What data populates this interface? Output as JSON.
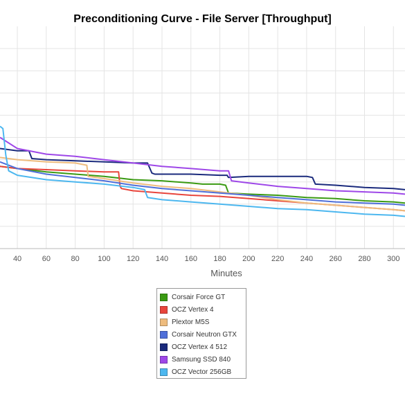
{
  "chart_data": {
    "type": "line",
    "title": "Preconditioning Curve - File Server [Throughput]",
    "xlabel": "Minutes",
    "ylabel": "",
    "xlim": [
      28,
      308
    ],
    "ylim": [
      0,
      100
    ],
    "x_ticks": [
      40,
      60,
      80,
      100,
      120,
      140,
      160,
      180,
      200,
      220,
      240,
      260,
      280,
      300
    ],
    "x_tick_labels": [
      "40",
      "60",
      "80",
      "100",
      "120",
      "140",
      "160",
      "180",
      "200",
      "220",
      "240",
      "260",
      "280",
      "300"
    ],
    "y_grid": [
      10,
      20,
      30,
      40,
      50,
      60,
      70,
      80,
      90
    ],
    "grid": true,
    "legend_position": "bottom-center",
    "series": [
      {
        "name": "Corsair Force GT",
        "color": "#3a9a12",
        "points": [
          [
            28,
            37
          ],
          [
            40,
            36
          ],
          [
            60,
            34.5
          ],
          [
            80,
            33.5
          ],
          [
            100,
            32.5
          ],
          [
            120,
            31
          ],
          [
            140,
            30.5
          ],
          [
            160,
            29.5
          ],
          [
            168,
            29
          ],
          [
            180,
            29
          ],
          [
            184,
            28.5
          ],
          [
            186,
            25
          ],
          [
            200,
            24.5
          ],
          [
            220,
            24
          ],
          [
            240,
            23
          ],
          [
            260,
            22.5
          ],
          [
            280,
            21.5
          ],
          [
            300,
            21
          ],
          [
            308,
            20.5
          ]
        ]
      },
      {
        "name": "OCZ Vertex 4",
        "color": "#e8453c",
        "points": [
          [
            28,
            37
          ],
          [
            40,
            36
          ],
          [
            60,
            35.5
          ],
          [
            80,
            35
          ],
          [
            100,
            34.5
          ],
          [
            110,
            34.5
          ],
          [
            111,
            28
          ],
          [
            112,
            27
          ],
          [
            120,
            26
          ],
          [
            140,
            25
          ],
          [
            160,
            24
          ],
          [
            180,
            23.5
          ],
          [
            200,
            22.5
          ],
          [
            220,
            21.5
          ],
          [
            240,
            20.5
          ],
          [
            260,
            19.5
          ],
          [
            280,
            18.5
          ],
          [
            300,
            17.5
          ],
          [
            308,
            17
          ]
        ]
      },
      {
        "name": "Plextor M5S",
        "color": "#eebc7e",
        "points": [
          [
            28,
            41
          ],
          [
            40,
            40
          ],
          [
            60,
            39
          ],
          [
            80,
            38.5
          ],
          [
            88,
            37.5
          ],
          [
            89,
            32.5
          ],
          [
            100,
            31.5
          ],
          [
            120,
            29.5
          ],
          [
            140,
            28
          ],
          [
            160,
            27
          ],
          [
            180,
            25.5
          ],
          [
            200,
            24
          ],
          [
            220,
            22
          ],
          [
            240,
            20.5
          ],
          [
            260,
            19.5
          ],
          [
            280,
            18.5
          ],
          [
            300,
            17.5
          ],
          [
            308,
            17
          ]
        ]
      },
      {
        "name": "Corsair Neutron GTX",
        "color": "#4f6fd9",
        "points": [
          [
            28,
            39
          ],
          [
            40,
            36
          ],
          [
            60,
            33.5
          ],
          [
            80,
            32
          ],
          [
            100,
            30.5
          ],
          [
            120,
            28.5
          ],
          [
            140,
            27
          ],
          [
            160,
            26
          ],
          [
            180,
            25
          ],
          [
            200,
            24
          ],
          [
            220,
            23
          ],
          [
            240,
            22
          ],
          [
            260,
            21
          ],
          [
            280,
            20.5
          ],
          [
            300,
            20
          ],
          [
            308,
            19.5
          ]
        ]
      },
      {
        "name": "OCZ Vertex 4 512",
        "color": "#1a2a7c",
        "points": [
          [
            28,
            45
          ],
          [
            40,
            44
          ],
          [
            48,
            44
          ],
          [
            50,
            40.5
          ],
          [
            60,
            40
          ],
          [
            80,
            39.5
          ],
          [
            100,
            39
          ],
          [
            120,
            38.5
          ],
          [
            130,
            38.5
          ],
          [
            133,
            34
          ],
          [
            135,
            33.5
          ],
          [
            140,
            33.5
          ],
          [
            160,
            33.5
          ],
          [
            180,
            33
          ],
          [
            185,
            33
          ],
          [
            186,
            32
          ],
          [
            200,
            32.5
          ],
          [
            220,
            32.5
          ],
          [
            240,
            32.5
          ],
          [
            244,
            32
          ],
          [
            246,
            29
          ],
          [
            260,
            28.5
          ],
          [
            280,
            27.5
          ],
          [
            300,
            27
          ],
          [
            308,
            26.5
          ]
        ]
      },
      {
        "name": "Samsung SSD 840",
        "color": "#9e47e8",
        "points": [
          [
            28,
            50
          ],
          [
            40,
            45
          ],
          [
            60,
            42.5
          ],
          [
            80,
            41.5
          ],
          [
            100,
            40
          ],
          [
            120,
            38.5
          ],
          [
            140,
            37
          ],
          [
            160,
            36
          ],
          [
            180,
            35
          ],
          [
            186,
            35
          ],
          [
            188,
            30.5
          ],
          [
            200,
            29.5
          ],
          [
            220,
            28
          ],
          [
            240,
            27
          ],
          [
            260,
            26
          ],
          [
            280,
            25.5
          ],
          [
            300,
            25
          ],
          [
            308,
            24.5
          ]
        ]
      },
      {
        "name": "OCZ Vector 256GB",
        "color": "#4cb7ef",
        "points": [
          [
            28,
            55
          ],
          [
            30,
            54
          ],
          [
            32,
            42
          ],
          [
            34,
            35
          ],
          [
            40,
            33
          ],
          [
            60,
            31
          ],
          [
            80,
            30
          ],
          [
            100,
            29
          ],
          [
            120,
            27.5
          ],
          [
            128,
            26.5
          ],
          [
            130,
            23
          ],
          [
            140,
            22
          ],
          [
            160,
            21
          ],
          [
            180,
            20
          ],
          [
            200,
            19
          ],
          [
            220,
            18
          ],
          [
            240,
            17.5
          ],
          [
            260,
            16.5
          ],
          [
            280,
            15.5
          ],
          [
            300,
            15
          ],
          [
            308,
            14.5
          ]
        ]
      }
    ]
  }
}
